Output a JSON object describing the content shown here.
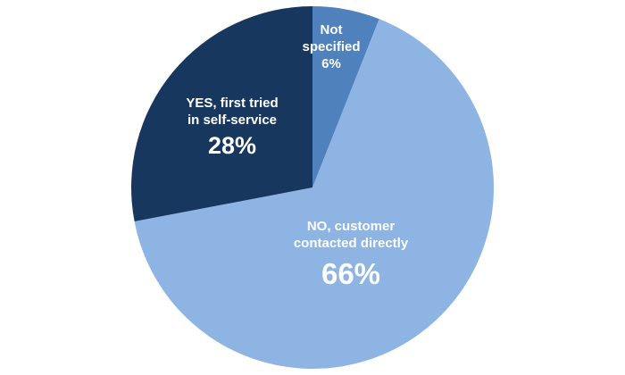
{
  "chart_data": {
    "type": "pie",
    "title": "",
    "slices": [
      {
        "label": "Not\nspecified",
        "value": 6,
        "display": "6%",
        "color": "#4f81bd"
      },
      {
        "label": "NO, customer\ncontacted directly",
        "value": 66,
        "display": "66%",
        "color": "#8eb4e3"
      },
      {
        "label": "YES, first tried\nin self-service",
        "value": 28,
        "display": "28%",
        "color": "#17375e"
      }
    ],
    "start": "top",
    "direction": "clockwise",
    "legend": "none"
  }
}
